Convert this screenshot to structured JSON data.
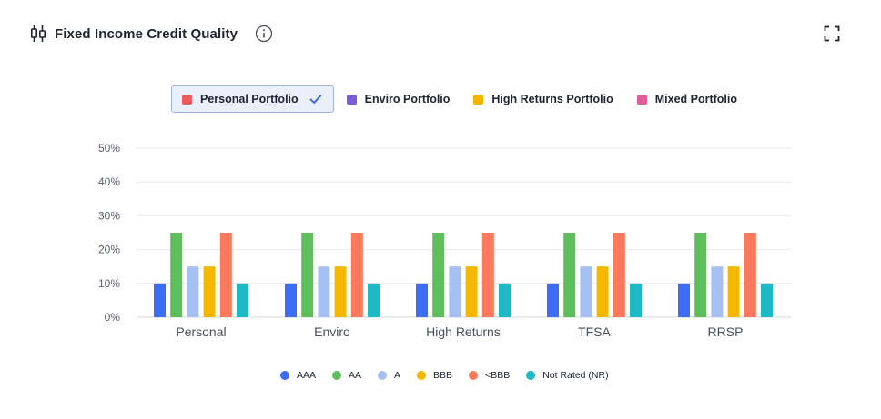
{
  "header": {
    "title": "Fixed Income Credit Quality",
    "icon": "candlestick-chart-icon",
    "info_icon": "info-icon",
    "expand_icon": "expand-icon"
  },
  "portfolio_legend": [
    {
      "label": "Personal Portfolio",
      "color": "#f0595b",
      "selected": true
    },
    {
      "label": "Enviro Portfolio",
      "color": "#7a5cd9",
      "selected": false
    },
    {
      "label": "High Returns Portfolio",
      "color": "#f5b300",
      "selected": false
    },
    {
      "label": "Mixed Portfolio",
      "color": "#e05d9a",
      "selected": false
    }
  ],
  "chart_data": {
    "type": "bar",
    "categories": [
      "Personal",
      "Enviro",
      "High Returns",
      "TFSA",
      "RRSP"
    ],
    "series": [
      {
        "name": "AAA",
        "color": "#3b6ef5",
        "values": [
          10,
          10,
          10,
          10,
          10
        ]
      },
      {
        "name": "AA",
        "color": "#5cbf5c",
        "values": [
          25,
          25,
          25,
          25,
          25
        ]
      },
      {
        "name": "A",
        "color": "#a6c0f2",
        "values": [
          15,
          15,
          15,
          15,
          15
        ]
      },
      {
        "name": "BBB",
        "color": "#f5b800",
        "values": [
          15,
          15,
          15,
          15,
          15
        ]
      },
      {
        "name": "<BBB",
        "color": "#fb7a5c",
        "values": [
          25,
          25,
          25,
          25,
          25
        ]
      },
      {
        "name": "Not Rated (NR)",
        "color": "#1fb8c6",
        "values": [
          10,
          10,
          10,
          10,
          10
        ]
      }
    ],
    "y_ticks": [
      "0%",
      "10%",
      "20%",
      "30%",
      "40%",
      "50%"
    ],
    "ylim": [
      0,
      50
    ],
    "grid": true,
    "legend_position": "bottom"
  }
}
